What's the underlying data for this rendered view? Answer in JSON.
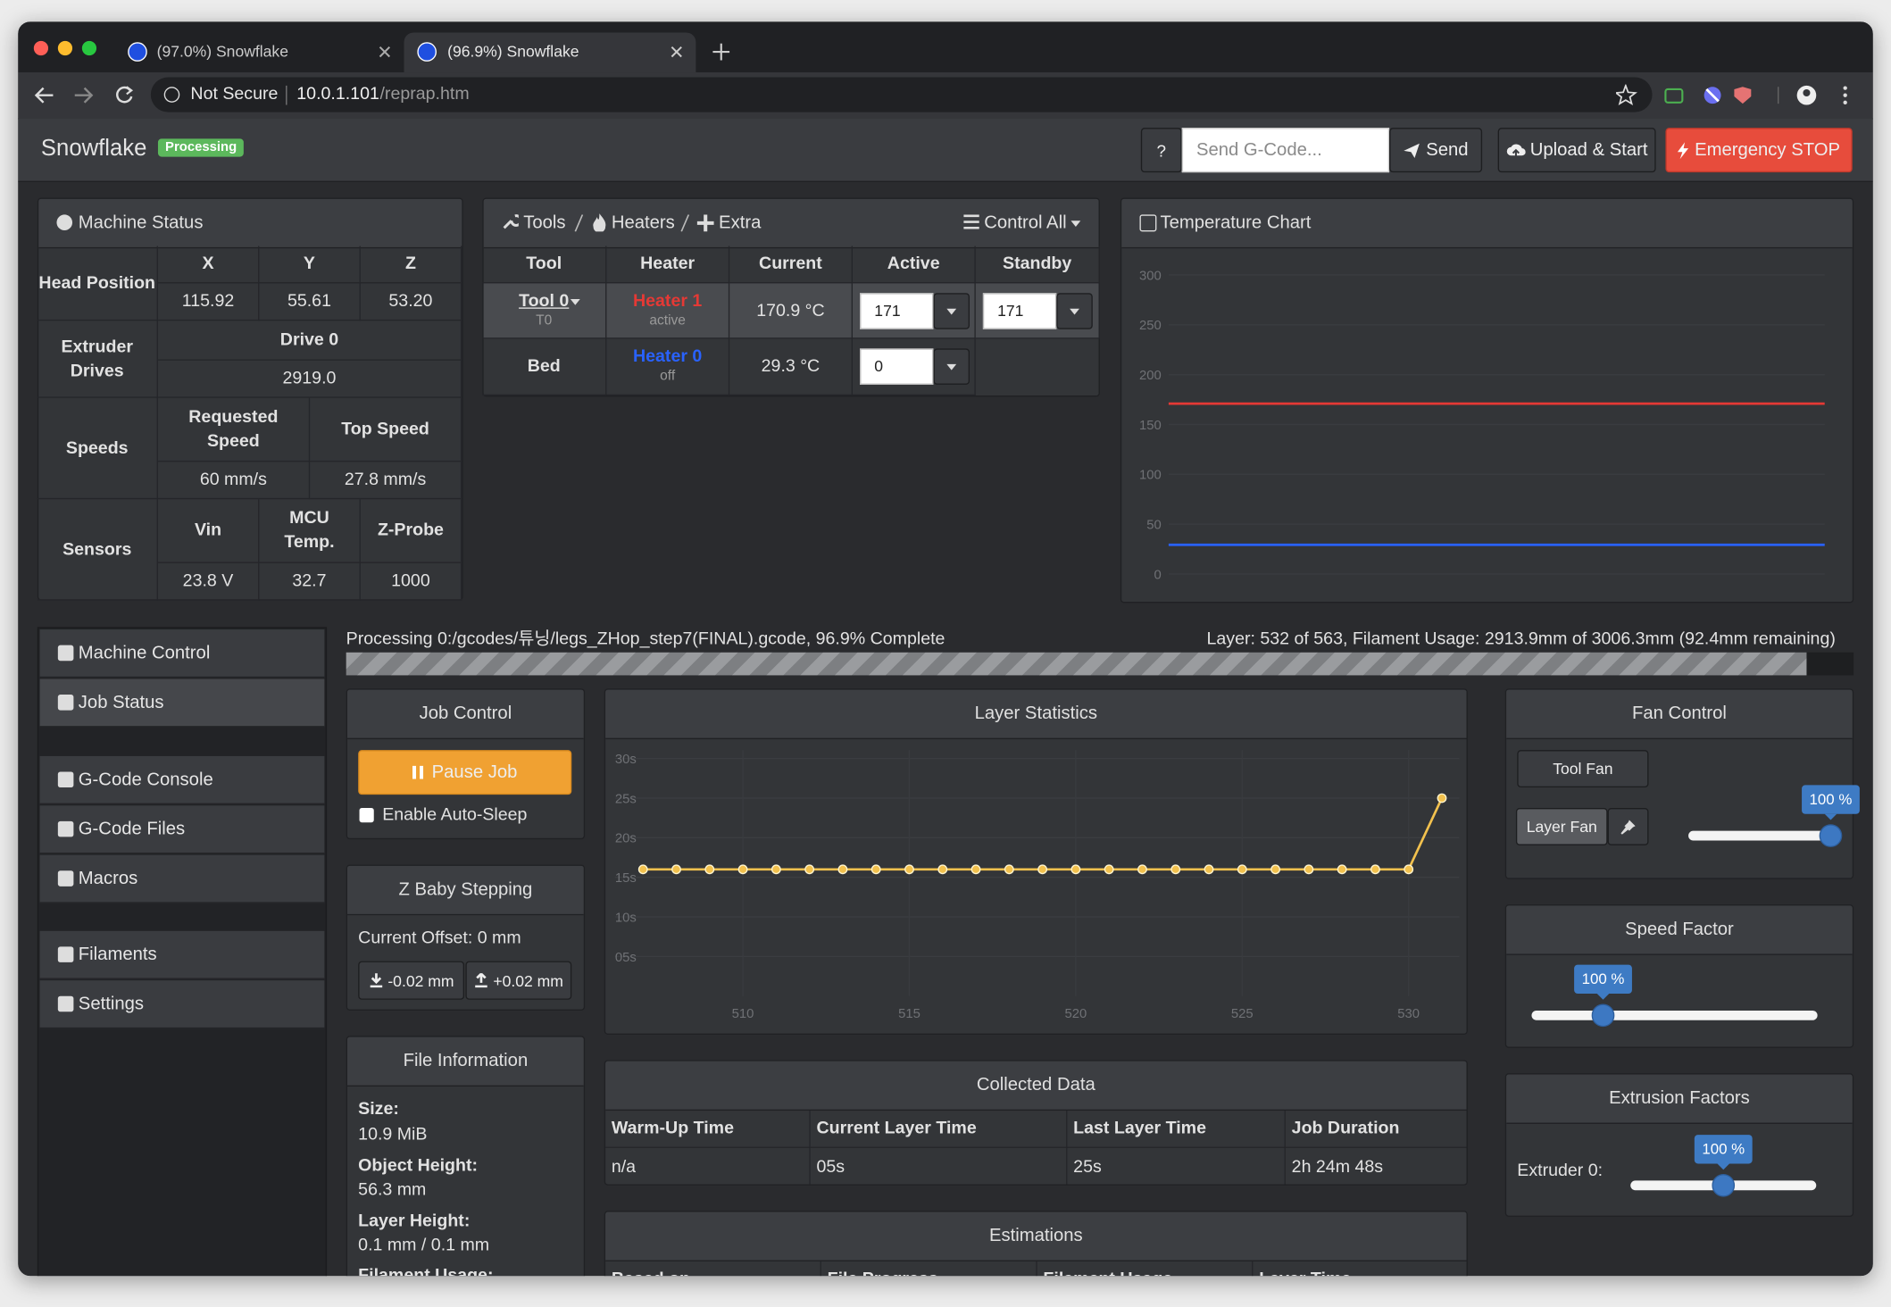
{
  "browser": {
    "tabs": [
      {
        "title": "(97.0%) Snowflake"
      },
      {
        "title": "(96.9%) Snowflake"
      }
    ],
    "security": "Not Secure",
    "host": "10.0.1.101",
    "path": "/reprap.htm"
  },
  "navbar": {
    "brand": "Snowflake",
    "status": "Processing",
    "help": "?",
    "gcode_placeholder": "Send G-Code...",
    "send": "Send",
    "upload": "Upload & Start",
    "estop": "Emergency STOP"
  },
  "machine_status": {
    "title": "Machine Status",
    "head_position": {
      "label": "Head Position",
      "headers": [
        "X",
        "Y",
        "Z"
      ],
      "values": [
        "115.92",
        "55.61",
        "53.20"
      ]
    },
    "extruder_drives": {
      "label": "Extruder Drives",
      "headers": [
        "Drive 0"
      ],
      "values": [
        "2919.0"
      ]
    },
    "speeds": {
      "label": "Speeds",
      "headers": [
        "Requested Speed",
        "Top Speed"
      ],
      "values": [
        "60 mm/s",
        "27.8 mm/s"
      ]
    },
    "sensors": {
      "label": "Sensors",
      "headers": [
        "Vin",
        "MCU Temp.",
        "Z-Probe"
      ],
      "values": [
        "23.8 V",
        "32.7",
        "1000"
      ]
    }
  },
  "tools": {
    "breadcrumb": [
      "Tools",
      "Heaters",
      "Extra"
    ],
    "control_all": "Control All",
    "headers": [
      "Tool",
      "Heater",
      "Current",
      "Active",
      "Standby"
    ],
    "rows": [
      {
        "tool": "Tool 0",
        "tool_sub": "T0",
        "heater": "Heater 1",
        "heater_color": "#e53935",
        "heater_state": "active",
        "current": "170.9 °C",
        "active": "171",
        "standby": "171"
      },
      {
        "tool": "Bed",
        "heater": "Heater 0",
        "heater_color": "#2962ff",
        "heater_state": "off",
        "current": "29.3 °C",
        "active": "0"
      }
    ]
  },
  "temperature_chart": {
    "title": "Temperature Chart",
    "chart_data": {
      "type": "line",
      "ylim": [
        0,
        300
      ],
      "yticks": [
        0,
        50,
        100,
        150,
        200,
        250,
        300
      ],
      "grid": true,
      "series": [
        {
          "color": "#e53935",
          "values": [
            170.9,
            170.9,
            170.9,
            170.9,
            170.9,
            170.9,
            170.9,
            170.9,
            170.9,
            170.9,
            170.9,
            170.9
          ]
        },
        {
          "color": "#2962ff",
          "values": [
            29.3,
            29.3,
            29.3,
            29.3,
            29.3,
            29.3,
            29.3,
            29.3,
            29.3,
            29.3,
            29.3,
            29.3
          ]
        }
      ]
    }
  },
  "sidebar": {
    "items": [
      "Machine Control",
      "Job Status",
      "G-Code Console",
      "G-Code Files",
      "Macros",
      "Filaments",
      "Settings"
    ],
    "active_index": 1
  },
  "progress": {
    "text": "Processing 0:/gcodes/튜닝/legs_ZHop_step7(FINAL).gcode, 96.9% Complete",
    "layer_text": "Layer: 532 of 563, Filament Usage: 2913.9mm of 3006.3mm (92.4mm remaining)",
    "value": 96.9
  },
  "job_control": {
    "title": "Job Control",
    "pause": "Pause Job",
    "auto_sleep": "Enable Auto-Sleep"
  },
  "baby_stepping": {
    "title": "Z Baby Stepping",
    "offset": "Current Offset: 0 mm",
    "down": "-0.02 mm",
    "up": "+0.02 mm"
  },
  "file_info": {
    "title": "File Information",
    "items": [
      {
        "label": "Size:",
        "value": "10.9 MiB"
      },
      {
        "label": "Object Height:",
        "value": "56.3 mm"
      },
      {
        "label": "Layer Height:",
        "value": "0.1 mm / 0.1 mm"
      },
      {
        "label": "Filament Usage:"
      }
    ]
  },
  "layer_statistics": {
    "title": "Layer Statistics",
    "chart_data": {
      "type": "line",
      "color": "#f2c14e",
      "grid": true,
      "x": [
        507,
        508,
        509,
        510,
        511,
        512,
        513,
        514,
        515,
        516,
        517,
        518,
        519,
        520,
        521,
        522,
        523,
        524,
        525,
        526,
        527,
        528,
        529,
        530,
        531
      ],
      "values": [
        16,
        16,
        16,
        16,
        16,
        16,
        16,
        16,
        16,
        16,
        16,
        16,
        16,
        16,
        16,
        16,
        16,
        16,
        16,
        16,
        16,
        16,
        16,
        16,
        25
      ],
      "xlim": [
        506.5,
        531.5
      ],
      "xticks": [
        510,
        515,
        520,
        525,
        530
      ],
      "ylim": [
        0,
        30
      ],
      "yticks": [
        {
          "value": 5,
          "label": "05s"
        },
        {
          "value": 10,
          "label": "10s"
        },
        {
          "value": 15,
          "label": "15s"
        },
        {
          "value": 20,
          "label": "20s"
        },
        {
          "value": 25,
          "label": "25s"
        },
        {
          "value": 30,
          "label": "30s"
        }
      ]
    }
  },
  "collected_data": {
    "title": "Collected Data",
    "headers": [
      "Warm-Up Time",
      "Current Layer Time",
      "Last Layer Time",
      "Job Duration"
    ],
    "values": [
      "n/a",
      "05s",
      "25s",
      "2h 24m 48s"
    ]
  },
  "estimations": {
    "title": "Estimations",
    "headers": [
      "Based on",
      "File Progress",
      "Filament Usage",
      "Layer Time"
    ]
  },
  "fan_control": {
    "title": "Fan Control",
    "fans": [
      "Tool Fan",
      "Layer Fan"
    ],
    "slider": {
      "value": 100,
      "label": "100 %",
      "range": [
        0,
        100
      ]
    }
  },
  "speed_factor": {
    "title": "Speed Factor",
    "slider": {
      "value": 100,
      "label": "100 %",
      "range": [
        50,
        250
      ]
    }
  },
  "extrusion_factors": {
    "title": "Extrusion Factors",
    "label": "Extruder 0:",
    "slider": {
      "value": 100,
      "label": "100 %",
      "range": [
        50,
        150
      ]
    }
  }
}
